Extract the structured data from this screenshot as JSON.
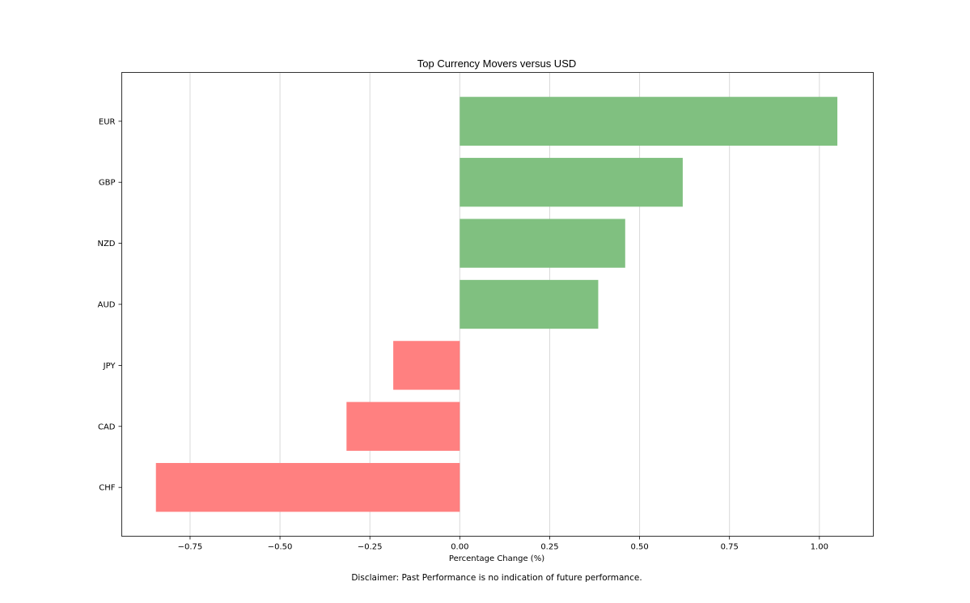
{
  "chart_data": {
    "type": "bar",
    "orientation": "horizontal",
    "title": "Top Currency Movers versus USD",
    "xlabel": "Percentage Change (%)",
    "ylabel": "",
    "categories": [
      "EUR",
      "GBP",
      "NZD",
      "AUD",
      "JPY",
      "CAD",
      "CHF"
    ],
    "values": [
      1.05,
      0.62,
      0.46,
      0.385,
      -0.185,
      -0.315,
      -0.845
    ],
    "xlim": [
      -0.94,
      1.15
    ],
    "xticks": [
      -0.75,
      -0.5,
      -0.25,
      0.0,
      0.25,
      0.5,
      0.75,
      1.0
    ],
    "xtick_labels": [
      "−0.75",
      "−0.50",
      "−0.25",
      "0.00",
      "0.25",
      "0.50",
      "0.75",
      "1.00"
    ],
    "grid": "vertical",
    "colors": {
      "positive": "#80c080",
      "negative": "#ff8080"
    }
  },
  "footer": {
    "disclaimer": "Disclaimer: Past Performance is no indication of future performance."
  }
}
